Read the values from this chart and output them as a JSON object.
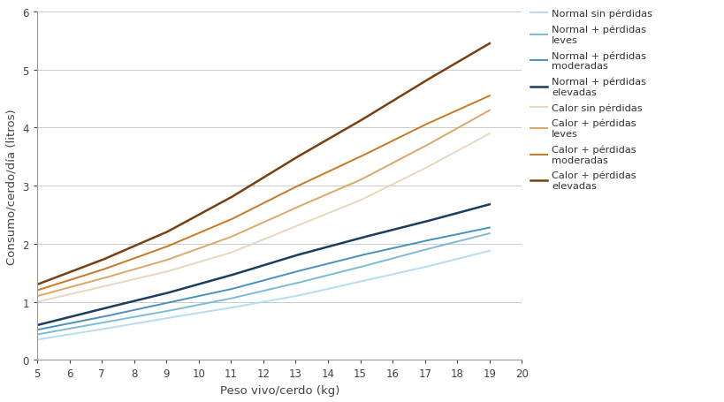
{
  "x": [
    5,
    7,
    9,
    11,
    13,
    15,
    17,
    19
  ],
  "series": [
    {
      "label": "Normal sin pérdidas",
      "color": "#b8ddf0",
      "linewidth": 1.4,
      "y": [
        0.35,
        0.53,
        0.72,
        0.9,
        1.1,
        1.35,
        1.6,
        1.88
      ]
    },
    {
      "label": "Normal + pérdidas\nleves",
      "color": "#7bbcd8",
      "linewidth": 1.4,
      "y": [
        0.44,
        0.64,
        0.84,
        1.06,
        1.32,
        1.6,
        1.9,
        2.18
      ]
    },
    {
      "label": "Normal + pérdidas\nmoderadas",
      "color": "#4a90c0",
      "linewidth": 1.4,
      "y": [
        0.52,
        0.74,
        0.98,
        1.22,
        1.52,
        1.8,
        2.05,
        2.28
      ]
    },
    {
      "label": "Normal + pérdidas\nelevadas",
      "color": "#1c3d5e",
      "linewidth": 1.8,
      "y": [
        0.6,
        0.88,
        1.15,
        1.46,
        1.8,
        2.1,
        2.38,
        2.68
      ]
    },
    {
      "label": "Calor sin pérdidas",
      "color": "#e8d8be",
      "linewidth": 1.4,
      "y": [
        1.0,
        1.26,
        1.52,
        1.85,
        2.3,
        2.75,
        3.3,
        3.9
      ]
    },
    {
      "label": "Calor + pérdidas\nleves",
      "color": "#dba868",
      "linewidth": 1.4,
      "y": [
        1.1,
        1.4,
        1.72,
        2.12,
        2.62,
        3.1,
        3.68,
        4.3
      ]
    },
    {
      "label": "Calor + pérdidas\nmoderadas",
      "color": "#cc7722",
      "linewidth": 1.4,
      "y": [
        1.2,
        1.55,
        1.95,
        2.42,
        2.98,
        3.5,
        4.05,
        4.55
      ]
    },
    {
      "label": "Calor + pérdidas\nelevadas",
      "color": "#7a4010",
      "linewidth": 1.8,
      "y": [
        1.3,
        1.72,
        2.2,
        2.8,
        3.48,
        4.12,
        4.8,
        5.45
      ]
    }
  ],
  "xlabel": "Peso vivo/cerdo (kg)",
  "ylabel": "Consumo/cerdo/día (litros)",
  "xlim": [
    5,
    20
  ],
  "ylim": [
    0,
    6
  ],
  "xticks": [
    5,
    6,
    7,
    8,
    9,
    10,
    11,
    12,
    13,
    14,
    15,
    16,
    17,
    18,
    19,
    20
  ],
  "yticks": [
    0,
    1,
    2,
    3,
    4,
    5,
    6
  ],
  "background_color": "#ffffff",
  "grid_color": "#cccccc",
  "axis_color": "#999999"
}
